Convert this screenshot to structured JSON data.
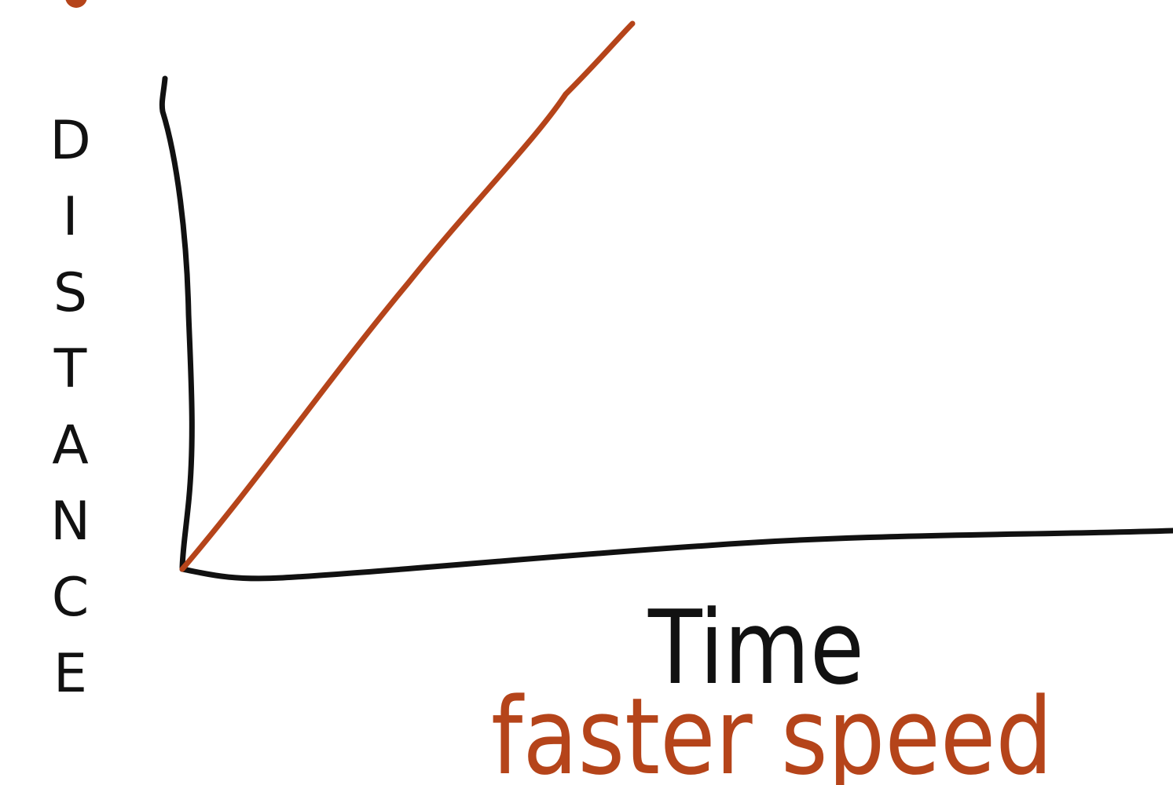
{
  "axes": {
    "y_label": "DISTANCE",
    "x_label": "Time"
  },
  "caption": "faster speed"
}
